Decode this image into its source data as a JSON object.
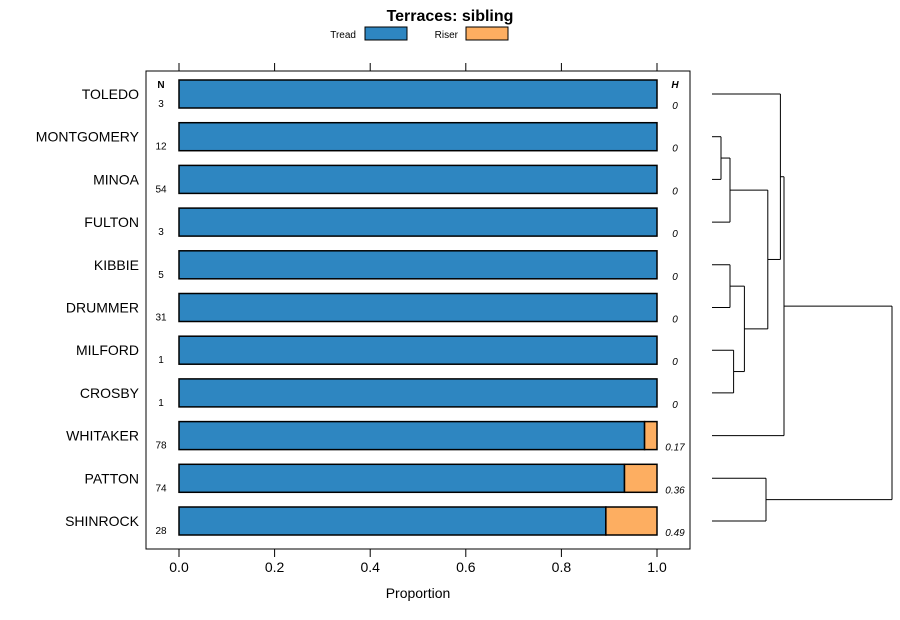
{
  "chart_data": {
    "type": "bar",
    "orientation": "horizontal",
    "stacked": true,
    "title": "Terraces: sibling",
    "xlabel": "Proportion",
    "ylabel": "",
    "xlim": [
      0.0,
      1.0
    ],
    "xticks": [
      "0.0",
      "0.2",
      "0.4",
      "0.6",
      "0.8",
      "1.0"
    ],
    "xtick_values": [
      0.0,
      0.2,
      0.4,
      0.6,
      0.8,
      1.0
    ],
    "legend": [
      {
        "name": "Tread",
        "color": "#2e86c1"
      },
      {
        "name": "Riser",
        "color": "#fdae61"
      }
    ],
    "legend_position": "top",
    "n_header": "N",
    "h_header": "H",
    "categories": [
      "TOLEDO",
      "MONTGOMERY",
      "MINOA",
      "FULTON",
      "KIBBIE",
      "DRUMMER",
      "MILFORD",
      "CROSBY",
      "WHITAKER",
      "PATTON",
      "SHINROCK"
    ],
    "n_values": [
      "3",
      "12",
      "54",
      "3",
      "5",
      "31",
      "1",
      "1",
      "78",
      "74",
      "28"
    ],
    "h_values": [
      "0",
      "0",
      "0",
      "0",
      "0",
      "0",
      "0",
      "0",
      "0.17",
      "0.36",
      "0.49"
    ],
    "series": [
      {
        "name": "Tread",
        "values": [
          1.0,
          1.0,
          1.0,
          1.0,
          1.0,
          1.0,
          1.0,
          1.0,
          0.974,
          0.932,
          0.893
        ]
      },
      {
        "name": "Riser",
        "values": [
          0.0,
          0.0,
          0.0,
          0.0,
          0.0,
          0.0,
          0.0,
          0.0,
          0.026,
          0.068,
          0.107
        ]
      }
    ],
    "dendrogram": {
      "description": "hierarchical clustering tree of rows",
      "merges": [
        {
          "id": "m1",
          "left": "MONTGOMERY",
          "right": "MINOA",
          "height": 0.05
        },
        {
          "id": "m2",
          "left": "m1",
          "right": "FULTON",
          "height": 0.1
        },
        {
          "id": "m3",
          "left": "KIBBIE",
          "right": "DRUMMER",
          "height": 0.1
        },
        {
          "id": "m4",
          "left": "MILFORD",
          "right": "CROSBY",
          "height": 0.12
        },
        {
          "id": "m5",
          "left": "m3",
          "right": "m4",
          "height": 0.18
        },
        {
          "id": "m6",
          "left": "m2",
          "right": "m5",
          "height": 0.31
        },
        {
          "id": "m7",
          "left": "TOLEDO",
          "right": "m6",
          "height": 0.38
        },
        {
          "id": "m8",
          "left": "m7",
          "right": "WHITAKER",
          "height": 0.4
        },
        {
          "id": "m9",
          "left": "PATTON",
          "right": "SHINROCK",
          "height": 0.3
        },
        {
          "id": "m10",
          "left": "m8",
          "right": "m9",
          "height": 1.0
        }
      ]
    }
  }
}
